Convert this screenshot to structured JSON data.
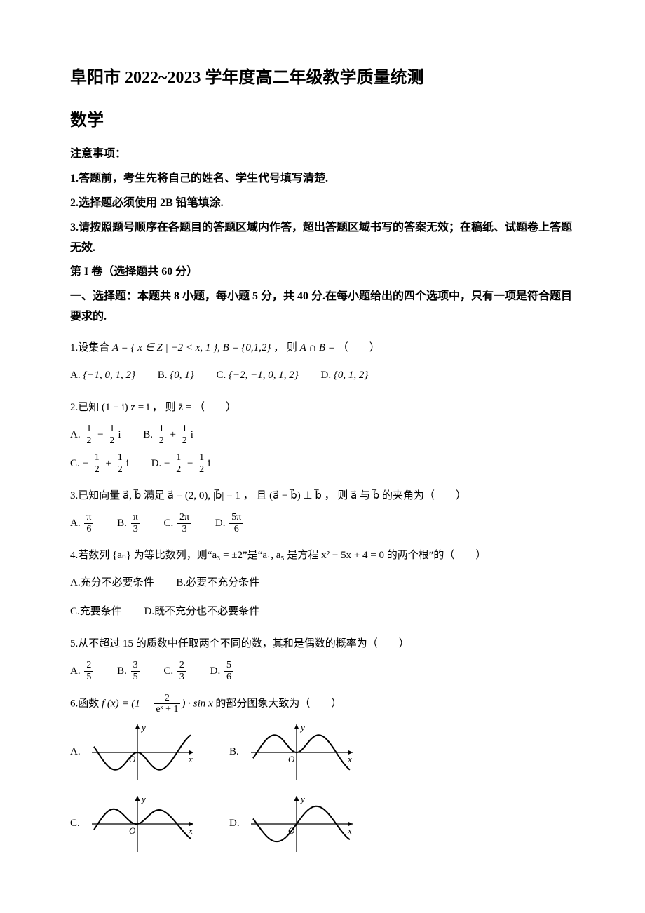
{
  "title_main": "阜阳市 2022~2023 学年度高二年级教学质量统测",
  "title_sub": "数学",
  "notice_header": "注意事项：",
  "notice_1": "1.答题前，考生先将自己的姓名、学生代号填写清楚.",
  "notice_2": "2.选择题必须使用 2B 铅笔填涂.",
  "notice_3": "3.请按照题号顺序在各题目的答题区域内作答，超出答题区域书写的答案无效；在稿纸、试题卷上答题无效.",
  "section_1a": "第 I 卷（选择题共 60 分）",
  "section_1b": "一、选择题：本题共 8 小题，每小题 5 分，共 40 分.在每小题给出的四个选项中，只有一项是符合题目要求的.",
  "q1": {
    "stem_a": "1.设集合 ",
    "stem_b": " ， 则 ",
    "stem_c": " （　　）",
    "set_A": "A = { x ∈ Z | −2 < x, 1 }, B = {0,1,2}",
    "expr": "A ∩ B =",
    "opts": {
      "A": "{−1, 0, 1, 2}",
      "B": "{0, 1}",
      "C": "{−2, −1, 0, 1, 2}",
      "D": "{0, 1, 2}"
    }
  },
  "q2": {
    "stem_a": "2.已知 (1 + i) z = i ， 则 z̄ = （　　）",
    "opts": {
      "A": {
        "n1": "1",
        "d1": "2",
        "sign": "−",
        "n2": "1",
        "d2": "2",
        "tail": "i"
      },
      "B": {
        "n1": "1",
        "d1": "2",
        "sign": "+",
        "n2": "1",
        "d2": "2",
        "tail": "i"
      },
      "C": {
        "pre": "−",
        "n1": "1",
        "d1": "2",
        "sign": "+",
        "n2": "1",
        "d2": "2",
        "tail": "i"
      },
      "D": {
        "pre": "−",
        "n1": "1",
        "d1": "2",
        "sign": "−",
        "n2": "1",
        "d2": "2",
        "tail": "i"
      }
    }
  },
  "q3": {
    "stem": "3.已知向量 a⃗, b⃗ 满足 a⃗ = (2, 0), |b⃗| = 1 ， 且 (a⃗ − b⃗) ⊥ b⃗ ， 则 a⃗ 与 b⃗ 的夹角为（　　）",
    "opts": {
      "A": {
        "n": "π",
        "d": "6"
      },
      "B": {
        "n": "π",
        "d": "3"
      },
      "C": {
        "n": "2π",
        "d": "3"
      },
      "D": {
        "n": "5π",
        "d": "6"
      }
    }
  },
  "q4": {
    "stem": "4.若数列 {aₙ} 为等比数列，则“a₃ = ±2”是“a₁, a₅ 是方程 x² − 5x + 4 = 0 的两个根”的（　　）",
    "opts": {
      "A": "充分不必要条件",
      "B": "必要不充分条件",
      "C": "充要条件",
      "D": "既不充分也不必要条件"
    }
  },
  "q5": {
    "stem": "5.从不超过 15 的质数中任取两个不同的数，其和是偶数的概率为（　　）",
    "opts": {
      "A": {
        "n": "2",
        "d": "5"
      },
      "B": {
        "n": "3",
        "d": "5"
      },
      "C": {
        "n": "2",
        "d": "3"
      },
      "D": {
        "n": "5",
        "d": "6"
      }
    }
  },
  "q6": {
    "stem_a": "6.函数 ",
    "stem_b": " 的部分图象大致为（　　）",
    "func_prefix": "f (x) = (1 − ",
    "func_frac": {
      "n": "2",
      "d": "eˣ + 1"
    },
    "func_suffix": ") · sin x",
    "labels": {
      "A": "A.",
      "B": "B.",
      "C": "C.",
      "D": "D."
    },
    "graph": {
      "axis_color": "#000000",
      "curve_color": "#000000",
      "curve_width": 2.0,
      "y_label": "y",
      "x_label": "x",
      "origin_label": "O",
      "label_fontsize": 13
    }
  }
}
